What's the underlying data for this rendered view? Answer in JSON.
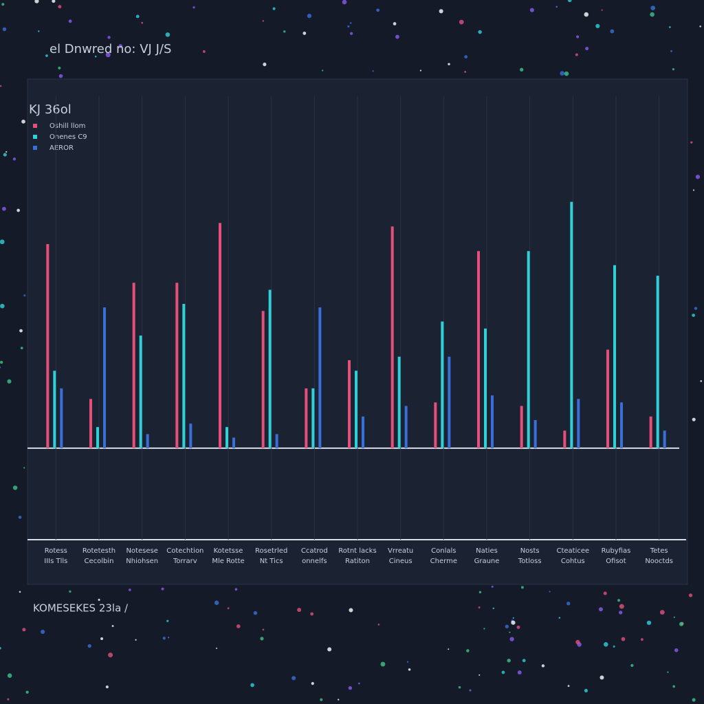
{
  "chart_data": {
    "type": "bar",
    "title": "el Dnwred no: VJ J/S",
    "legend_title": "KJ 36ol",
    "note": "KOMESEKES 23la /",
    "categories": [
      [
        "Rotess",
        "IIIs Tlls"
      ],
      [
        "Rotetesth",
        "Cecolbin"
      ],
      [
        "Notesese",
        "Nhiohsen"
      ],
      [
        "Cotechtion",
        "Torrarv"
      ],
      [
        "Kotetsse",
        "Mle Rotte"
      ],
      [
        "Rosetrled",
        "Nt Tics"
      ],
      [
        "Ccatrod",
        "onnelfs"
      ],
      [
        "Rotnt lacks",
        "Ratiton"
      ],
      [
        "Vrreatu",
        "Cineus"
      ],
      [
        "Conlals",
        "Cherme"
      ],
      [
        "Naties",
        "Graune"
      ],
      [
        "Nosts",
        "Totloss"
      ],
      [
        "Cteaticee",
        "Cohtus"
      ],
      [
        "Rubyfias",
        "Ofisot"
      ],
      [
        "Tetes",
        "Nooctds"
      ]
    ],
    "series": [
      {
        "name": "Oshill llom",
        "color": "#e4507a",
        "values": [
          58,
          14,
          47,
          47,
          64,
          39,
          17,
          25,
          63,
          13,
          56,
          12,
          5,
          28,
          9
        ]
      },
      {
        "name": "Onenes C9",
        "color": "#2fd0d8",
        "values": [
          22,
          6,
          32,
          41,
          6,
          45,
          17,
          22,
          26,
          36,
          34,
          56,
          70,
          52,
          49
        ]
      },
      {
        "name": "AEROR",
        "color": "#3a6fd8",
        "values": [
          17,
          40,
          4,
          7,
          3,
          4,
          40,
          9,
          12,
          26,
          15,
          8,
          14,
          13,
          5
        ]
      }
    ],
    "ylim": [
      -26,
      100
    ]
  }
}
